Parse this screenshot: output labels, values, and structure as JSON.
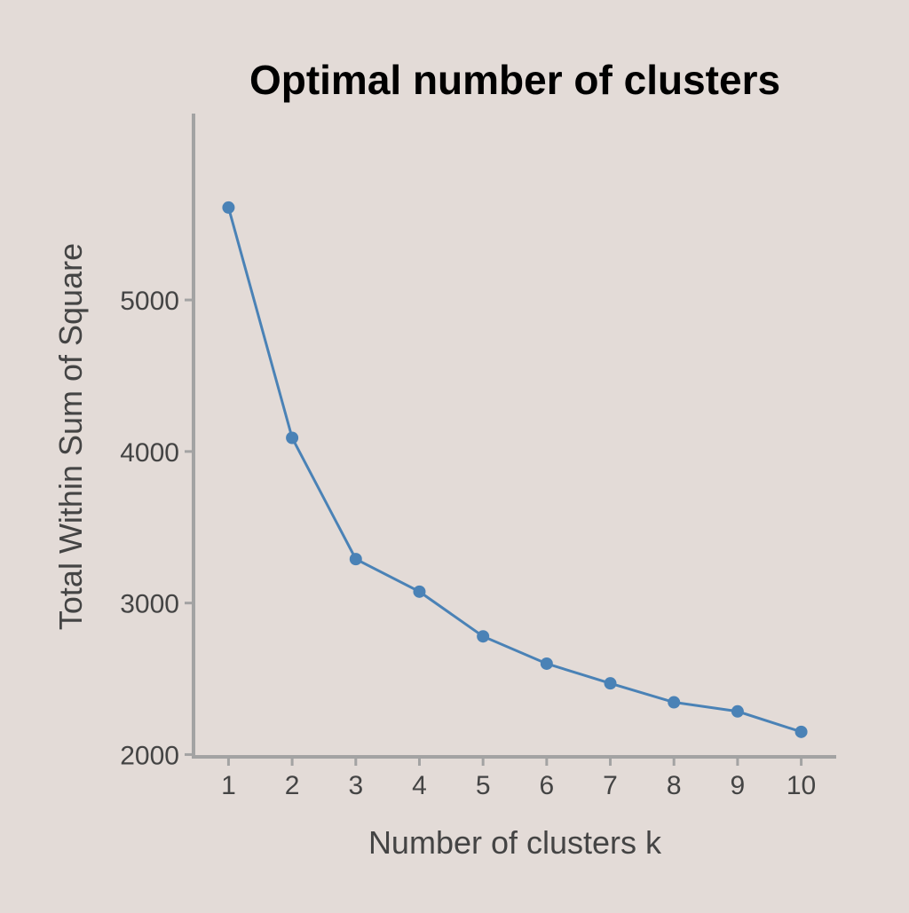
{
  "chart_data": {
    "type": "line",
    "title": "Optimal number of clusters",
    "xlabel": "Number of clusters k",
    "ylabel": "Total Within Sum of Square",
    "x": [
      1,
      2,
      3,
      4,
      5,
      6,
      7,
      8,
      9,
      10
    ],
    "series": [
      {
        "values": [
          5610,
          4090,
          3290,
          3075,
          2780,
          2600,
          2470,
          2345,
          2285,
          2150
        ]
      }
    ],
    "xticks": [
      "1",
      "2",
      "3",
      "4",
      "5",
      "6",
      "7",
      "8",
      "9",
      "10"
    ],
    "yticks": [
      2000,
      3000,
      4000,
      5000
    ],
    "xlim": [
      0.45,
      10.55
    ],
    "ylim": [
      1985,
      6230
    ],
    "grid": false,
    "legend": "none"
  },
  "colors": {
    "background": "#e3dbd7",
    "line": "#4a82b6",
    "axis": "#a3a3a3",
    "text": "#444444",
    "title": "#000000"
  }
}
